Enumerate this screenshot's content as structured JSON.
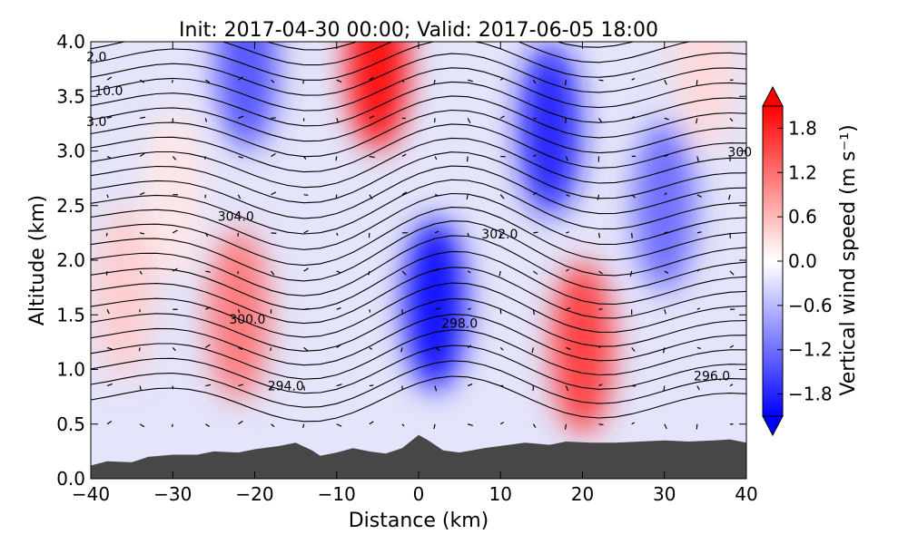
{
  "chart_data": {
    "type": "heatmap",
    "title": "Init: 2017-04-30 00:00; Valid: 2017-06-05 18:00",
    "xlabel": "Distance (km)",
    "ylabel": "Altitude (km)",
    "xlim": [
      -40,
      40
    ],
    "ylim": [
      0.0,
      4.0
    ],
    "x_ticks": [
      "−40",
      "−30",
      "−20",
      "−10",
      "0",
      "10",
      "20",
      "30",
      "40"
    ],
    "y_ticks": [
      "0.0",
      "0.5",
      "1.0",
      "1.5",
      "2.0",
      "2.5",
      "3.0",
      "3.5",
      "4.0"
    ],
    "colorbar": {
      "label": "Vertical wind speed (m s⁻¹)",
      "range": [
        -2.1,
        2.1
      ],
      "ticks": [
        "1.8",
        "1.2",
        "0.6",
        "0.0",
        "−0.6",
        "−1.2",
        "−1.8"
      ],
      "extend": "both",
      "colormap": "bwr",
      "low_color": "#0000ff",
      "mid_color": "#ffffff",
      "high_color": "#ff0000"
    },
    "field_cells": [
      {
        "x": -36,
        "y": 1.7,
        "value": 0.4
      },
      {
        "x": -30,
        "y": 2.6,
        "value": 0.2
      },
      {
        "x": -22,
        "y": 1.5,
        "value": 1.1
      },
      {
        "x": -21,
        "y": 3.8,
        "value": -1.4
      },
      {
        "x": -5,
        "y": 3.8,
        "value": 2.0
      },
      {
        "x": 2,
        "y": 1.6,
        "value": -2.0
      },
      {
        "x": 16,
        "y": 3.2,
        "value": -1.8
      },
      {
        "x": 20,
        "y": 1.2,
        "value": 1.6
      },
      {
        "x": 30,
        "y": 2.5,
        "value": -1.2
      },
      {
        "x": 35,
        "y": 3.8,
        "value": 0.3
      }
    ],
    "contour_labels": [
      {
        "text": "2.0",
        "x": -39.3,
        "y": 3.82
      },
      {
        "text": "10.0",
        "x": -37.8,
        "y": 3.51
      },
      {
        "text": "3.0",
        "x": -39.3,
        "y": 3.23
      },
      {
        "text": "304.0",
        "x": -22.3,
        "y": 2.36
      },
      {
        "text": "302.0",
        "x": 9.9,
        "y": 2.2
      },
      {
        "text": "300.0",
        "x": -20.9,
        "y": 1.42
      },
      {
        "text": "298.0",
        "x": 5.0,
        "y": 1.38
      },
      {
        "text": "294.0",
        "x": -16.2,
        "y": 0.81
      },
      {
        "text": "296.0",
        "x": 35.8,
        "y": 0.9
      },
      {
        "text": "300",
        "x": 39.2,
        "y": 2.95
      }
    ],
    "terrain_height_km": [
      [
        -40,
        0.12
      ],
      [
        -38,
        0.16
      ],
      [
        -35,
        0.15
      ],
      [
        -33,
        0.2
      ],
      [
        -30,
        0.22
      ],
      [
        -27,
        0.22
      ],
      [
        -25,
        0.25
      ],
      [
        -22,
        0.24
      ],
      [
        -20,
        0.27
      ],
      [
        -17,
        0.3
      ],
      [
        -15,
        0.33
      ],
      [
        -13,
        0.26
      ],
      [
        -12,
        0.21
      ],
      [
        -10,
        0.24
      ],
      [
        -8,
        0.28
      ],
      [
        -6,
        0.25
      ],
      [
        -4,
        0.23
      ],
      [
        -2,
        0.28
      ],
      [
        0,
        0.4
      ],
      [
        1,
        0.36
      ],
      [
        3,
        0.26
      ],
      [
        5,
        0.24
      ],
      [
        8,
        0.28
      ],
      [
        10,
        0.3
      ],
      [
        13,
        0.33
      ],
      [
        16,
        0.31
      ],
      [
        18,
        0.34
      ],
      [
        21,
        0.33
      ],
      [
        24,
        0.33
      ],
      [
        27,
        0.34
      ],
      [
        30,
        0.35
      ],
      [
        33,
        0.34
      ],
      [
        36,
        0.35
      ],
      [
        38,
        0.36
      ],
      [
        40,
        0.33
      ]
    ]
  }
}
